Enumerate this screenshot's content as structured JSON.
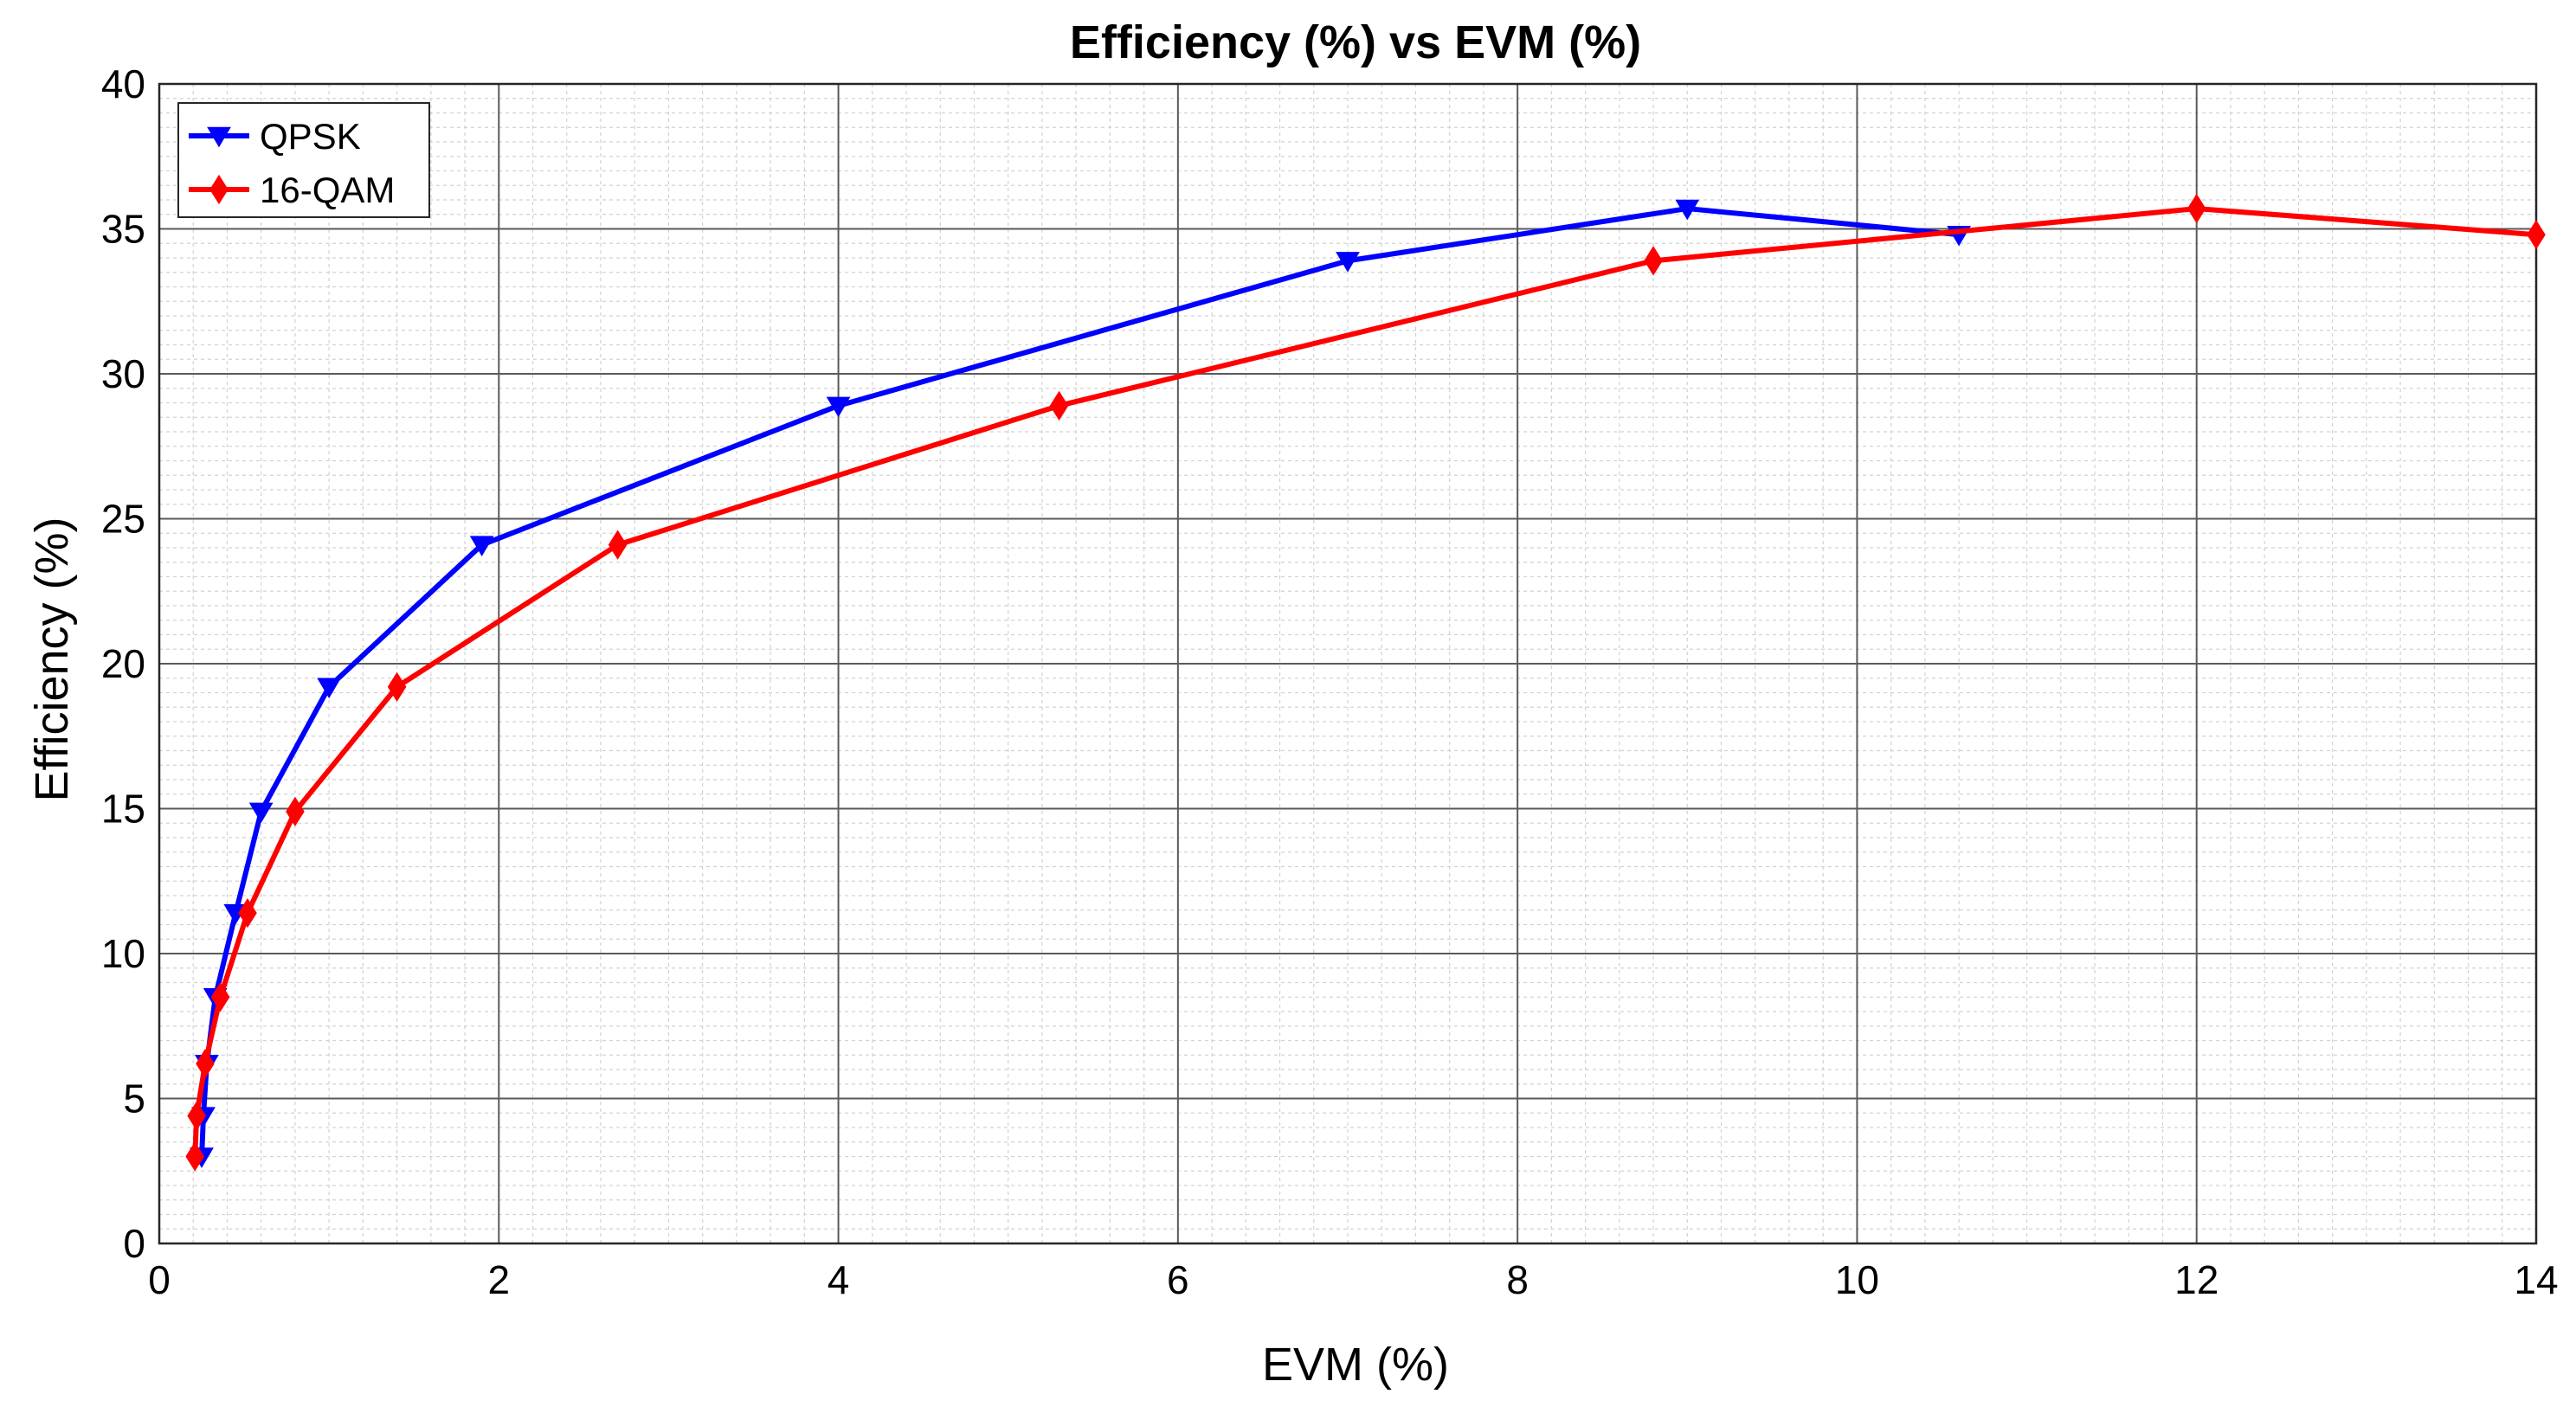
{
  "chart_data": {
    "type": "line",
    "title": "Efficiency (%) vs EVM (%)",
    "xlabel": "EVM (%)",
    "ylabel": "Efficiency (%)",
    "xlim": [
      0,
      14
    ],
    "ylim": [
      0,
      40
    ],
    "xticks": [
      0,
      2,
      4,
      6,
      8,
      10,
      12,
      14
    ],
    "yticks": [
      0,
      5,
      10,
      15,
      20,
      25,
      30,
      35,
      40
    ],
    "xtick_labels": [
      "0",
      "2",
      "4",
      "6",
      "8",
      "10",
      "12",
      "14"
    ],
    "ytick_labels": [
      "0",
      "5",
      "10",
      "15",
      "20",
      "25",
      "30",
      "35",
      "40"
    ],
    "grid": true,
    "minor_grid": true,
    "legend_position": "top-left",
    "series": [
      {
        "name": "QPSK",
        "color": "#0000ff",
        "marker": "triangle-down",
        "x": [
          0.25,
          0.26,
          0.28,
          0.33,
          0.45,
          0.6,
          1.0,
          1.9,
          4.0,
          7.0,
          9.0,
          10.6
        ],
        "y": [
          3.0,
          4.4,
          6.2,
          8.5,
          11.4,
          14.9,
          19.2,
          24.1,
          28.9,
          33.9,
          35.7,
          34.8
        ]
      },
      {
        "name": "16-QAM",
        "color": "#ff0000",
        "marker": "diamond",
        "x": [
          0.21,
          0.22,
          0.27,
          0.36,
          0.52,
          0.8,
          1.4,
          2.7,
          5.3,
          8.8,
          12.0,
          14.0
        ],
        "y": [
          3.0,
          4.4,
          6.2,
          8.5,
          11.4,
          14.9,
          19.2,
          24.1,
          28.9,
          33.9,
          35.7,
          34.8
        ]
      }
    ]
  }
}
